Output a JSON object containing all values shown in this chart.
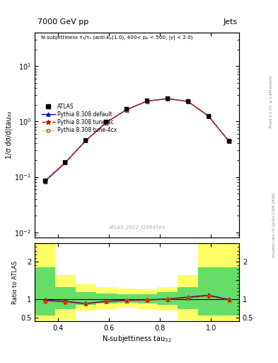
{
  "title_top": "7000 GeV pp",
  "title_right": "Jets",
  "annotation": "N-subjettiness τ₃/τ₂ (anti-kₚ(1.0), 400< pₚ < 500, |y| < 2.0)",
  "watermark": "ATLAS_2012_I1094564",
  "rivet_label": "Rivet 3.1.10, ≥ 2.9M events",
  "mcplots_label": "mcplots.cern.ch [arXiv:1306.3436]",
  "ylabel_main": "1/σ dσ/d|tau₃₂",
  "ylabel_ratio": "Ratio to ATLAS",
  "x_data": [
    0.35,
    0.43,
    0.51,
    0.59,
    0.67,
    0.75,
    0.83,
    0.91,
    0.99,
    1.07
  ],
  "atlas_y": [
    0.085,
    0.185,
    0.46,
    0.97,
    1.65,
    2.35,
    2.6,
    2.3,
    1.25,
    0.44
  ],
  "pythia_default_y": [
    0.083,
    0.181,
    0.453,
    0.96,
    1.64,
    2.33,
    2.585,
    2.295,
    1.255,
    0.441
  ],
  "pythia_4c_y": [
    0.086,
    0.184,
    0.458,
    0.965,
    1.643,
    2.335,
    2.59,
    2.298,
    1.258,
    0.442
  ],
  "pythia_4cx_y": [
    0.085,
    0.183,
    0.456,
    0.962,
    1.641,
    2.332,
    2.587,
    2.296,
    1.256,
    0.44
  ],
  "ratio_default": [
    0.97,
    0.935,
    0.875,
    0.94,
    0.965,
    0.975,
    1.0,
    1.05,
    1.1,
    0.985
  ],
  "ratio_4c": [
    0.955,
    0.93,
    0.87,
    0.935,
    0.96,
    0.97,
    0.995,
    1.04,
    1.085,
    0.978
  ],
  "ratio_4cx": [
    0.925,
    0.905,
    0.855,
    0.92,
    0.95,
    0.96,
    0.985,
    1.025,
    1.07,
    0.965
  ],
  "x_edges": [
    0.31,
    0.39,
    0.47,
    0.55,
    0.63,
    0.71,
    0.79,
    0.87,
    0.95,
    1.03,
    1.11
  ],
  "yellow_hi": [
    2.5,
    1.65,
    1.4,
    1.32,
    1.28,
    1.27,
    1.32,
    1.65,
    2.5,
    2.5
  ],
  "yellow_lo": [
    0.4,
    0.42,
    0.68,
    0.72,
    0.76,
    0.72,
    0.68,
    0.42,
    0.4,
    0.4
  ],
  "green_hi": [
    1.85,
    1.32,
    1.18,
    1.14,
    1.12,
    1.12,
    1.18,
    1.32,
    1.85,
    1.85
  ],
  "green_lo": [
    0.55,
    0.72,
    0.84,
    0.88,
    0.9,
    0.88,
    0.84,
    0.72,
    0.55,
    0.55
  ],
  "xlim": [
    0.31,
    1.11
  ],
  "ylim_main": [
    0.008,
    40
  ],
  "ylim_ratio": [
    0.4,
    2.5
  ],
  "yticks_ratio": [
    0.5,
    1.0,
    1.5,
    2.0
  ],
  "ytick_labels_ratio_left": [
    "0.5",
    "1",
    "",
    "2"
  ],
  "ytick_labels_ratio_right": [
    "0.5",
    "1",
    "",
    "2"
  ],
  "xticks": [
    0.4,
    0.6,
    0.8,
    1.0
  ],
  "color_atlas": "#000000",
  "color_default": "#0000cc",
  "color_4c": "#cc0000",
  "color_4cx": "#cc6600",
  "color_yellow": "#ffff66",
  "color_green": "#66dd66"
}
